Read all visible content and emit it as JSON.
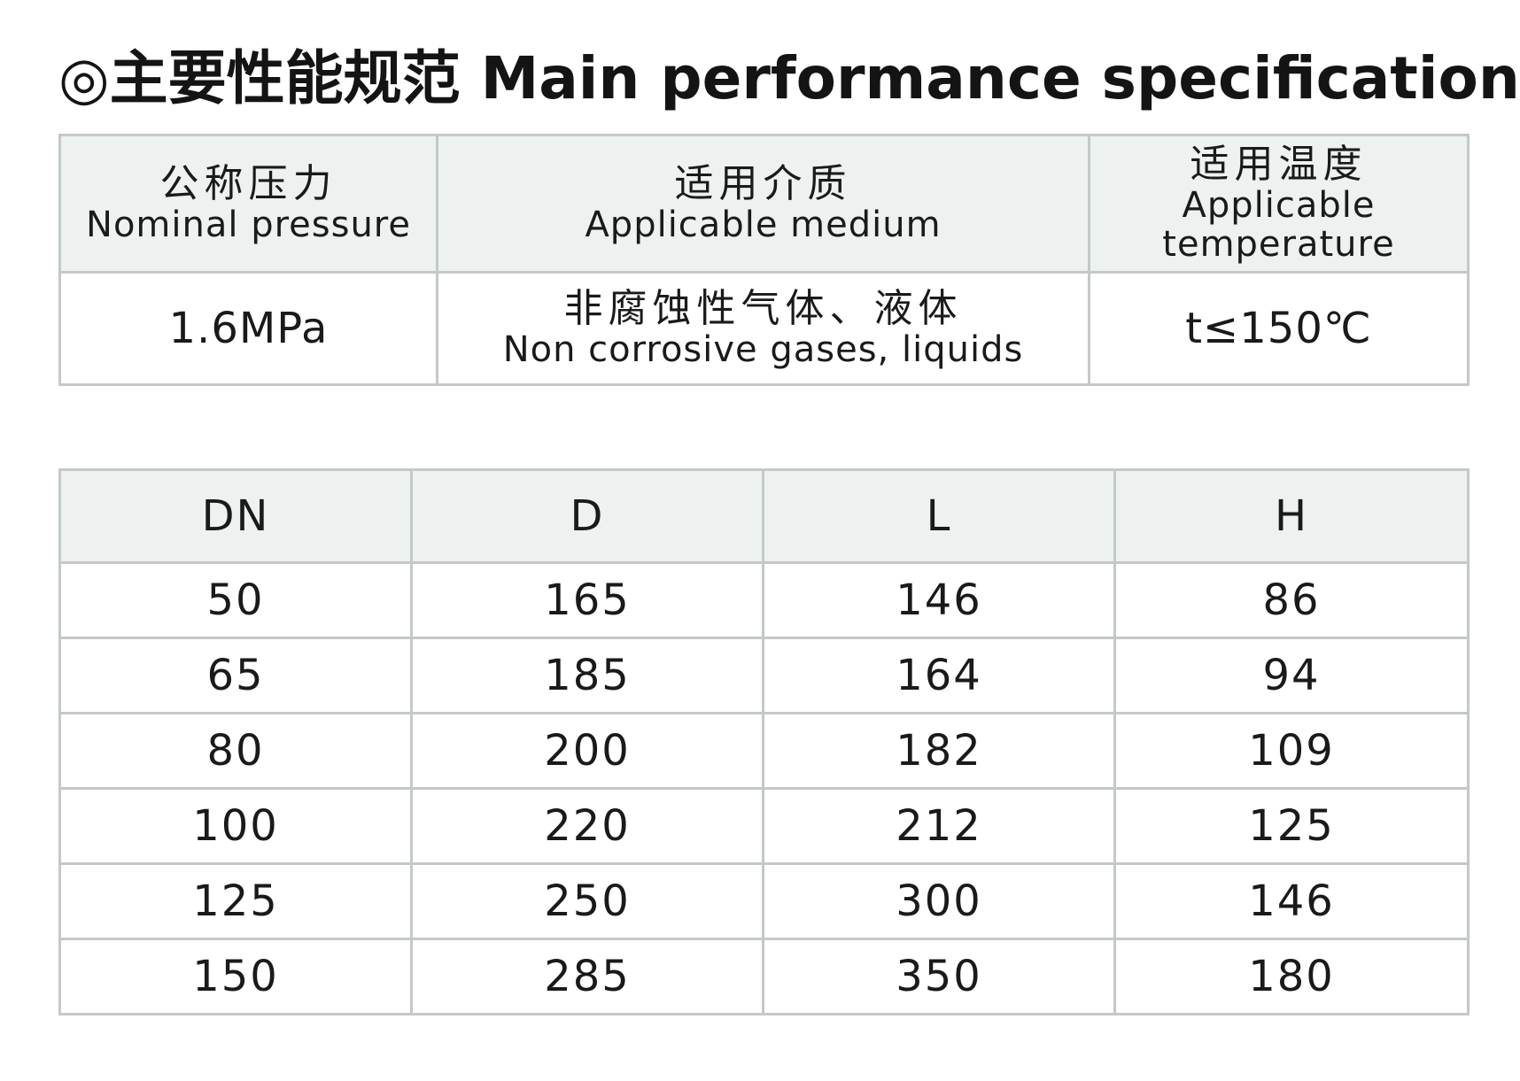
{
  "title": "◎主要性能规范 Main performance specification",
  "spec_table": {
    "headers": [
      {
        "cn": "公称压力",
        "en": "Nominal pressure"
      },
      {
        "cn": "适用介质",
        "en": "Applicable medium"
      },
      {
        "cn": "适用温度",
        "en": "Applicable temperature"
      }
    ],
    "values": {
      "pressure": "1.6MPa",
      "medium_cn": "非腐蚀性气体、液体",
      "medium_en": "Non corrosive gases, liquids",
      "temperature": "t≤150℃"
    }
  },
  "dimension_table": {
    "headers": [
      "DN",
      "D",
      "L",
      "H"
    ],
    "rows": [
      [
        "50",
        "165",
        "146",
        "86"
      ],
      [
        "65",
        "185",
        "164",
        "94"
      ],
      [
        "80",
        "200",
        "182",
        "109"
      ],
      [
        "100",
        "220",
        "212",
        "125"
      ],
      [
        "125",
        "250",
        "300",
        "146"
      ],
      [
        "150",
        "285",
        "350",
        "180"
      ]
    ]
  }
}
